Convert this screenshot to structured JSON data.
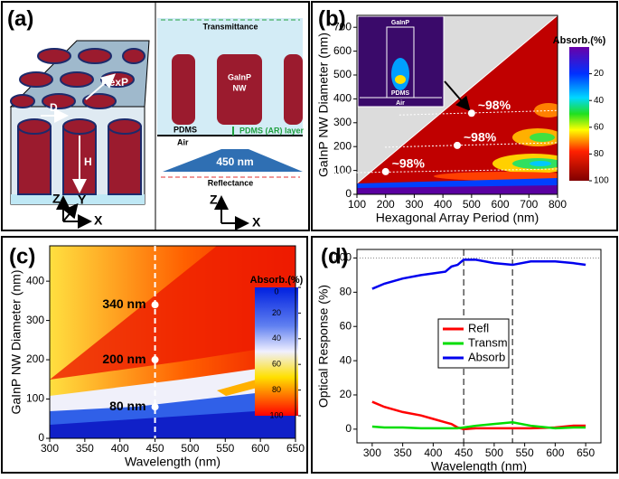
{
  "chart_data": [
    {
      "type": "diagram",
      "panel_label": "(a)",
      "labels": {
        "d": "D",
        "hexp": "HexP",
        "h": "H",
        "z1": "Z",
        "y1": "Y",
        "x1": "X",
        "transmittance": "Transmittance",
        "nw_line1": "GaInP",
        "nw_line2": "NW",
        "pdms": "PDMS",
        "ar": "PDMS (AR) layer",
        "air": "Air",
        "wavelength": "450 nm",
        "reflectance": "Reflectance",
        "z2": "Z",
        "x2": "X"
      }
    },
    {
      "type": "heatmap",
      "panel_label": "(b)",
      "xlabel": "Hexagonal Array Period (nm)",
      "ylabel": "GaInP NW Diameter (nm)",
      "xlim": [
        100,
        800
      ],
      "xticks": [
        100,
        200,
        300,
        400,
        500,
        600,
        700,
        800
      ],
      "ylim": [
        0,
        750
      ],
      "yticks": [
        0,
        100,
        200,
        300,
        400,
        500,
        600,
        700
      ],
      "colorbar": {
        "title": "Absorb.(%)",
        "lim": [
          0,
          100
        ],
        "ticks": [
          20,
          40,
          60,
          80,
          100
        ]
      },
      "markers": {
        "x": [
          200,
          450,
          500
        ],
        "y": [
          95,
          205,
          340
        ],
        "labels": [
          "~98%",
          "~98%",
          "~98%"
        ]
      },
      "inset_labels": [
        "GaInP",
        "PDMS",
        "Air"
      ]
    },
    {
      "type": "heatmap",
      "panel_label": "(c)",
      "xlabel": "Wavelength (nm)",
      "ylabel": "GaInP NW Diameter (nm)",
      "xlim": [
        300,
        650
      ],
      "xticks": [
        300,
        350,
        400,
        450,
        500,
        550,
        600,
        650
      ],
      "ylim": [
        0,
        490
      ],
      "yticks": [
        0,
        100,
        200,
        300,
        400
      ],
      "colorbar": {
        "title": "Absorb.(%)",
        "lim": [
          0,
          100
        ],
        "ticks": [
          0,
          20,
          40,
          60,
          80,
          100
        ]
      },
      "vline": 450,
      "markers": {
        "x": [
          450,
          450,
          450
        ],
        "y": [
          340,
          200,
          80
        ],
        "value_labels": [
          "340 nm",
          "200 nm",
          "80 nm"
        ]
      }
    },
    {
      "type": "line",
      "panel_label": "(d)",
      "xlabel": "Wavelength (nm)",
      "ylabel": "Optical Response (%)",
      "xlim": [
        275,
        675
      ],
      "xticks": [
        300,
        350,
        400,
        450,
        500,
        550,
        600,
        650
      ],
      "ylim": [
        -8,
        105
      ],
      "yticks": [
        0,
        20,
        40,
        60,
        80,
        100
      ],
      "hlines": [
        100
      ],
      "vlines": [
        450,
        530
      ],
      "x": [
        300,
        320,
        350,
        380,
        400,
        420,
        430,
        440,
        450,
        470,
        500,
        530,
        560,
        600,
        630,
        650
      ],
      "series": [
        {
          "name": "Refl",
          "color": "#ff0000",
          "values": [
            16,
            13,
            10,
            8,
            6,
            4,
            3,
            1,
            0,
            0.5,
            0.5,
            0.5,
            0.5,
            1,
            2,
            2
          ]
        },
        {
          "name": "Transm",
          "color": "#00dd00",
          "values": [
            1.5,
            1,
            1,
            0.5,
            0.5,
            0.5,
            0.5,
            0.5,
            1,
            2,
            3,
            4,
            2,
            0.5,
            1,
            1
          ]
        },
        {
          "name": "Absorb",
          "color": "#0000ee",
          "values": [
            82,
            85,
            88,
            90,
            91,
            92,
            95,
            96,
            99,
            99,
            97,
            96,
            98,
            98,
            97,
            96
          ]
        }
      ],
      "legend": "center"
    }
  ]
}
